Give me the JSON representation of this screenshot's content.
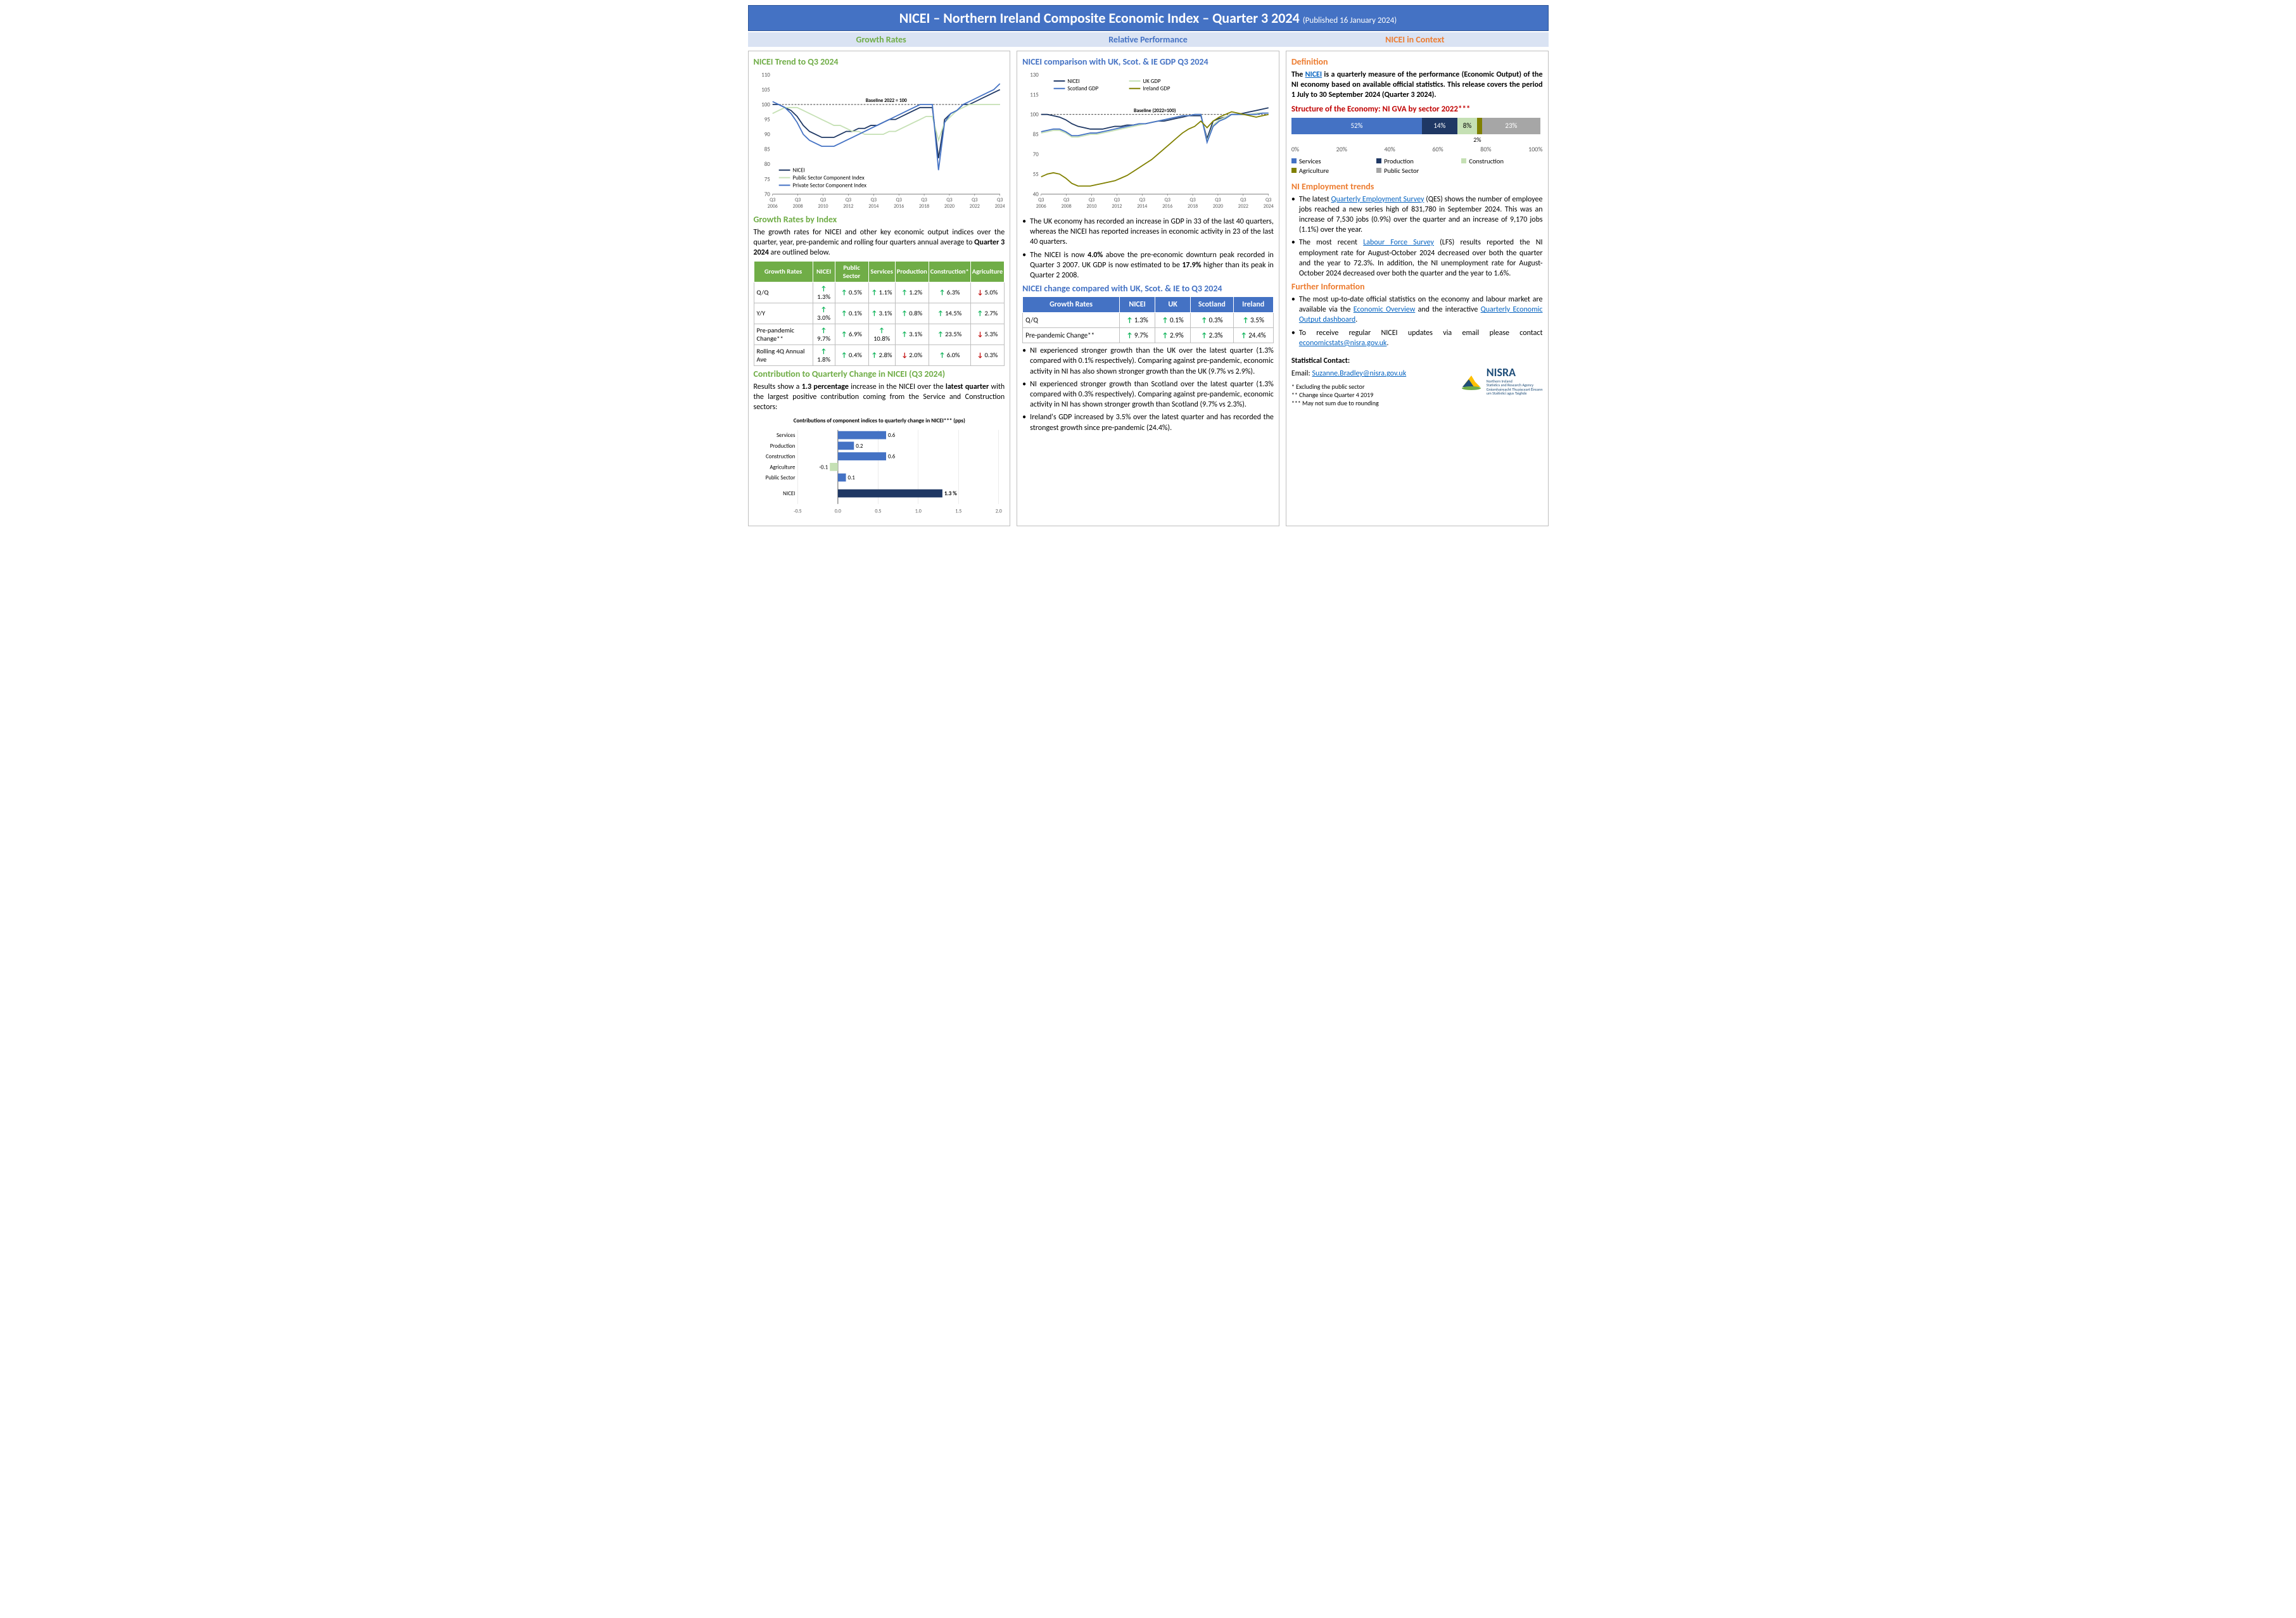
{
  "header": {
    "title": "NICEI – Northern Ireland Composite Economic Index – Quarter 3 2024",
    "published": "(Published 16 January 2024)"
  },
  "subheaders": {
    "left": "Growth Rates",
    "mid": "Relative Performance",
    "right": "NICEI in Context"
  },
  "col1": {
    "trend_title": "NICEI Trend to Q3 2024",
    "trend_chart": {
      "ylim": [
        70,
        110
      ],
      "yticks": [
        70,
        75,
        80,
        85,
        90,
        95,
        100,
        105,
        110
      ],
      "xticks": [
        "Q3\n2006",
        "Q3\n2008",
        "Q3\n2010",
        "Q3\n2012",
        "Q3\n2014",
        "Q3\n2016",
        "Q3\n2018",
        "Q3\n2020",
        "Q3\n2022",
        "Q3\n2024"
      ],
      "baseline_label": "Baseline 2022 = 100",
      "series": {
        "nicei": {
          "label": "NICEI",
          "color": "#1f3864",
          "data": [
            100,
            100,
            99,
            98,
            96,
            93,
            91,
            90,
            89,
            89,
            89,
            90,
            91,
            91,
            92,
            92,
            93,
            93,
            94,
            95,
            95,
            96,
            97,
            98,
            99,
            99,
            99,
            82,
            95,
            97,
            98,
            100,
            100,
            101,
            102,
            103,
            104,
            105
          ]
        },
        "public": {
          "label": "Public Sector Component Index",
          "color": "#c5e0b4",
          "data": [
            97,
            98,
            99,
            99,
            99,
            98,
            97,
            96,
            95,
            94,
            93,
            93,
            92,
            91,
            91,
            90,
            90,
            90,
            90,
            91,
            91,
            92,
            93,
            94,
            95,
            96,
            96,
            88,
            94,
            96,
            98,
            99,
            100,
            100,
            100,
            100,
            100,
            100
          ]
        },
        "private": {
          "label": "Private Sector Component Index",
          "color": "#4472c4",
          "data": [
            101,
            100,
            99,
            97,
            94,
            90,
            88,
            87,
            86,
            86,
            86,
            87,
            88,
            89,
            90,
            91,
            92,
            93,
            94,
            95,
            96,
            97,
            98,
            99,
            100,
            100,
            100,
            78,
            94,
            97,
            98,
            100,
            101,
            102,
            103,
            104,
            105,
            107
          ]
        }
      }
    },
    "growth_rates_title": "Growth Rates by Index",
    "growth_rates_text": "The growth rates for NICEI and other key economic output indices over the quarter, year, pre-pandemic and rolling four quarters annual average to Quarter 3 2024 are outlined below.",
    "growth_table": {
      "headers": [
        "Growth Rates",
        "NICEI",
        "Public Sector",
        "Services",
        "Production",
        "Construction*",
        "Agriculture"
      ],
      "rows": [
        {
          "label": "Q/Q",
          "vals": [
            [
              "up",
              "1.3%"
            ],
            [
              "up",
              "0.5%"
            ],
            [
              "up",
              "1.1%"
            ],
            [
              "up",
              "1.2%"
            ],
            [
              "up",
              "6.3%"
            ],
            [
              "dn",
              "5.0%"
            ]
          ]
        },
        {
          "label": "Y/Y",
          "vals": [
            [
              "up",
              "3.0%"
            ],
            [
              "up",
              "0.1%"
            ],
            [
              "up",
              "3.1%"
            ],
            [
              "up",
              "0.8%"
            ],
            [
              "up",
              "14.5%"
            ],
            [
              "up",
              "2.7%"
            ]
          ]
        },
        {
          "label": "Pre-pandemic Change**",
          "vals": [
            [
              "up",
              "9.7%"
            ],
            [
              "up",
              "6.9%"
            ],
            [
              "up",
              "10.8%"
            ],
            [
              "up",
              "3.1%"
            ],
            [
              "up",
              "23.5%"
            ],
            [
              "dn",
              "5.3%"
            ]
          ]
        },
        {
          "label": "Rolling 4Q Annual Ave",
          "vals": [
            [
              "up",
              "1.8%"
            ],
            [
              "up",
              "0.4%"
            ],
            [
              "up",
              "2.8%"
            ],
            [
              "dn",
              "2.0%"
            ],
            [
              "up",
              "6.0%"
            ],
            [
              "dn",
              "0.3%"
            ]
          ]
        }
      ]
    },
    "contrib_title": "Contribution to Quarterly Change in NICEI (Q3 2024)",
    "contrib_text": "Results show a 1.3 percentage increase in the NICEI over the latest quarter with the largest positive contribution coming from the Service and Construction sectors:",
    "contrib_chart": {
      "title": "Contributions of component indices to quarterly change in NICEI*** (pps)",
      "categories": [
        "Services",
        "Production",
        "Construction",
        "Agriculture",
        "Public Sector",
        "NICEI"
      ],
      "values": [
        0.6,
        0.2,
        0.6,
        -0.1,
        0.1,
        1.3
      ],
      "colors": [
        "#4472c4",
        "#4472c4",
        "#4472c4",
        "#c5e0b4",
        "#4472c4",
        "#1f3864"
      ],
      "xlim": [
        -0.5,
        2.0
      ],
      "xticks": [
        -0.5,
        0.0,
        0.5,
        1.0,
        1.5,
        2.0
      ],
      "nicei_label": "1.3 %"
    }
  },
  "col2": {
    "comp_title": "NICEI comparison with UK, Scot. & IE GDP Q3 2024",
    "comp_chart": {
      "ylim": [
        40,
        130
      ],
      "yticks": [
        40,
        55,
        70,
        85,
        100,
        115,
        130
      ],
      "xticks": [
        "Q3\n2006",
        "Q3\n2008",
        "Q3\n2010",
        "Q3\n2012",
        "Q3\n2014",
        "Q3\n2016",
        "Q3\n2018",
        "Q3\n2020",
        "Q3\n2022",
        "Q3\n2024"
      ],
      "baseline_label": "Baseline (2022=100)",
      "series": {
        "nicei": {
          "label": "NICEI",
          "color": "#1f3864",
          "data": [
            100,
            100,
            99,
            98,
            96,
            93,
            91,
            90,
            89,
            89,
            89,
            90,
            91,
            91,
            92,
            92,
            93,
            93,
            94,
            95,
            95,
            96,
            97,
            98,
            99,
            99,
            99,
            82,
            95,
            97,
            98,
            100,
            100,
            101,
            102,
            103,
            104,
            105
          ]
        },
        "uk": {
          "label": "UK GDP",
          "color": "#c5e0b4",
          "data": [
            86,
            87,
            88,
            88,
            86,
            83,
            83,
            84,
            85,
            85,
            86,
            87,
            88,
            89,
            90,
            91,
            92,
            93,
            94,
            95,
            96,
            97,
            98,
            99,
            99,
            100,
            100,
            80,
            92,
            96,
            98,
            100,
            100,
            100,
            100,
            101,
            101,
            101
          ]
        },
        "scot": {
          "label": "Scotland GDP",
          "color": "#4472c4",
          "data": [
            87,
            88,
            89,
            89,
            87,
            84,
            84,
            85,
            86,
            86,
            87,
            88,
            89,
            90,
            91,
            92,
            93,
            93,
            94,
            95,
            96,
            97,
            98,
            99,
            99,
            100,
            100,
            79,
            91,
            95,
            97,
            100,
            100,
            100,
            100,
            100,
            101,
            101
          ]
        },
        "ire": {
          "label": "Ireland GDP",
          "color": "#808000",
          "data": [
            53,
            55,
            56,
            55,
            52,
            48,
            46,
            46,
            46,
            47,
            48,
            49,
            50,
            52,
            54,
            57,
            60,
            63,
            66,
            70,
            74,
            78,
            82,
            86,
            89,
            91,
            95,
            90,
            95,
            98,
            100,
            102,
            101,
            100,
            99,
            98,
            99,
            100
          ]
        }
      }
    },
    "bullets1": [
      "The UK economy has recorded an increase in GDP in 33 of the last 40 quarters, whereas the NICEI has reported increases in economic activity in 23 of the last 40 quarters.",
      "The NICEI is now 4.0% above the pre-economic downturn peak recorded in Quarter 3 2007. UK GDP is now estimated to be 17.9% higher than its peak in Quarter 2 2008."
    ],
    "change_title": "NICEI change compared with UK, Scot. & IE to Q3 2024",
    "change_table": {
      "headers": [
        "Growth Rates",
        "NICEI",
        "UK",
        "Scotland",
        "Ireland"
      ],
      "rows": [
        {
          "label": "Q/Q",
          "vals": [
            [
              "up",
              "1.3%"
            ],
            [
              "up",
              "0.1%"
            ],
            [
              "up",
              "0.3%"
            ],
            [
              "up",
              "3.5%"
            ]
          ]
        },
        {
          "label": "Pre-pandemic Change**",
          "vals": [
            [
              "up",
              "9.7%"
            ],
            [
              "up",
              "2.9%"
            ],
            [
              "up",
              "2.3%"
            ],
            [
              "up",
              "24.4%"
            ]
          ]
        }
      ]
    },
    "bullets2": [
      "NI experienced stronger growth than the UK over the latest quarter (1.3% compared with 0.1% respectively). Comparing against pre-pandemic, economic activity in NI has also shown stronger growth than the UK (9.7% vs 2.9%).",
      "NI experienced stronger growth than Scotland over the latest quarter (1.3% compared with 0.3% respectively). Comparing against pre-pandemic, economic activity in NI has shown stronger growth than Scotland (9.7% vs 2.3%).",
      "Ireland's GDP increased by 3.5% over the latest quarter and has recorded the strongest growth since pre-pandemic (24.4%)."
    ]
  },
  "col3": {
    "def_title": "Definition",
    "def_text_pre": "The ",
    "def_link": "NICEI",
    "def_text_post": " is a quarterly measure of the performance (Economic Output) of the NI economy based on available official statistics. This release covers the period 1 July to 30 September 2024 (Quarter 3 2024).",
    "gva_title": "Structure of the Economy: NI GVA by sector 2022***",
    "gva_bar": {
      "segments": [
        {
          "label": "52%",
          "width": 52,
          "color": "#4472c4"
        },
        {
          "label": "14%",
          "width": 14,
          "color": "#1f3864"
        },
        {
          "label": "8%",
          "width": 8,
          "color": "#c5e0b4",
          "text_color": "#000"
        },
        {
          "label": "",
          "width": 2,
          "color": "#808000"
        },
        {
          "label": "23%",
          "width": 23,
          "color": "#a6a6a6"
        }
      ],
      "below_label": "2%",
      "axis": [
        "0%",
        "20%",
        "40%",
        "60%",
        "80%",
        "100%"
      ],
      "legend": [
        {
          "label": "Services",
          "color": "#4472c4"
        },
        {
          "label": "Production",
          "color": "#1f3864"
        },
        {
          "label": "Construction",
          "color": "#c5e0b4"
        },
        {
          "label": "Agriculture",
          "color": "#808000"
        },
        {
          "label": "Public Sector",
          "color": "#a6a6a6"
        }
      ]
    },
    "emp_title": "NI Employment trends",
    "emp_bullets": [
      {
        "pre": "The latest ",
        "link": "Quarterly Employment Survey",
        "post": " (QES) shows the number of employee jobs reached a new series high of 831,780 in September 2024. This was an increase of 7,530 jobs (0.9%) over the quarter and an increase of 9,170 jobs (1.1%) over the year."
      },
      {
        "pre": "The most recent ",
        "link": "Labour Force Survey",
        "post": " (LFS) results reported the NI employment rate for August-October 2024 decreased over both the quarter and the year to 72.3%. In addition, the NI unemployment rate for August-October 2024 decreased over both the quarter and the year to 1.6%."
      }
    ],
    "further_title": "Further Information",
    "further_bullets": [
      {
        "pre": "The most up-to-date official statistics on the economy and labour market are available via the ",
        "link1": "Economic Overview",
        "mid": " and the interactive ",
        "link2": "Quarterly Economic Output dashboard",
        "post": "."
      },
      {
        "pre": "To receive regular NICEI updates via email please contact ",
        "link1": "economicstats@nisra.gov.uk",
        "mid": "",
        "link2": "",
        "post": "."
      }
    ],
    "contact_title": "Statistical Contact:",
    "contact_email_label": "Email: ",
    "contact_email": "Suzanne.Bradley@nisra.gov.uk",
    "footnotes": [
      "* Excluding the public sector",
      "** Change since Quarter 4 2019",
      "*** May not sum due to rounding"
    ],
    "logo_text": "NISRA",
    "logo_sub": "Northern Ireland\nStatistics and Research Agency\nGníomhaireacht Thuaisceart Éireann\num Staitisticí agus Taighde"
  }
}
